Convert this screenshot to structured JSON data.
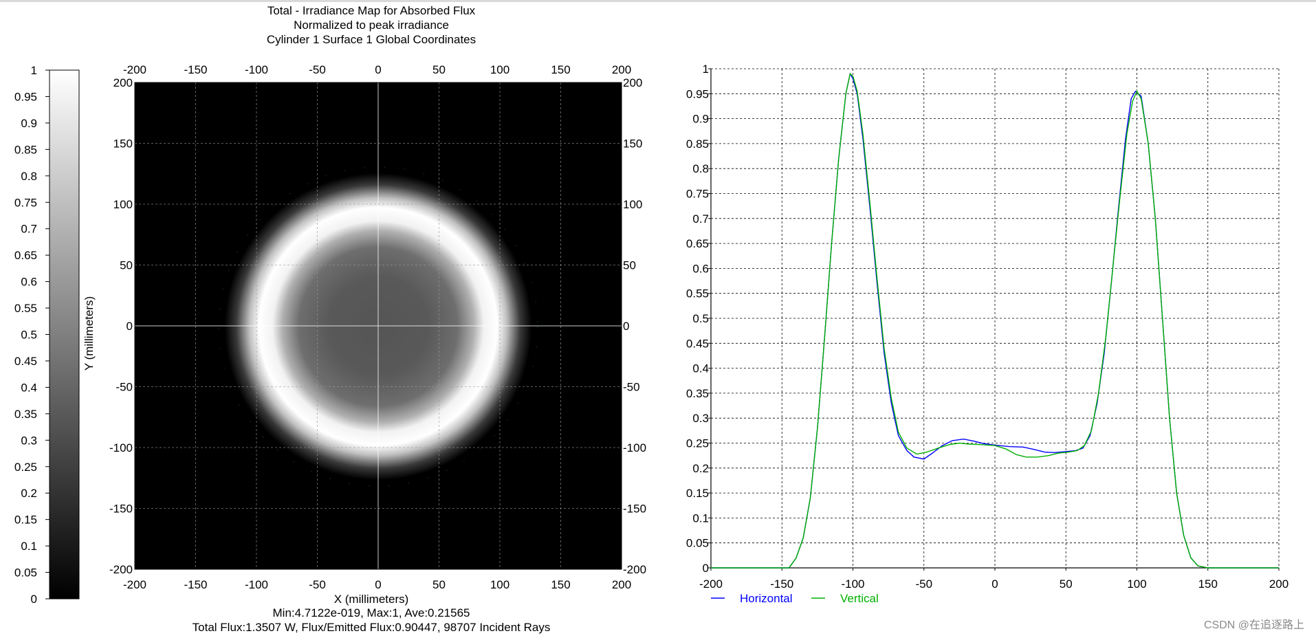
{
  "chart_data": [
    {
      "type": "colorbar",
      "label": "",
      "ylim": [
        0,
        1
      ],
      "ticks": [
        "0",
        "0.05",
        "0.1",
        "0.15",
        "0.2",
        "0.25",
        "0.3",
        "0.35",
        "0.4",
        "0.45",
        "0.5",
        "0.55",
        "0.6",
        "0.65",
        "0.7",
        "0.75",
        "0.8",
        "0.85",
        "0.9",
        "0.95",
        "1"
      ]
    },
    {
      "type": "heatmap",
      "title": [
        "Total - Irradiance Map for Absorbed Flux",
        "Normalized to peak irradiance",
        "Cylinder 1 Surface 1    Global Coordinates"
      ],
      "xlabel": "X (millimeters)",
      "ylabel": "Y (millimeters)",
      "xlim": [
        -200,
        200
      ],
      "ylim": [
        -200,
        200
      ],
      "xticks": [
        "-200",
        "-150",
        "-100",
        "-50",
        "0",
        "50",
        "100",
        "150",
        "200"
      ],
      "yticks": [
        "200",
        "150",
        "100",
        "50",
        "0",
        "-50",
        "-100",
        "-150",
        "-200"
      ],
      "grid": true,
      "description_values": {
        "ring_peak_radius_mm": 103,
        "ring_peak_value": 1.0,
        "center_value": 0.25,
        "outside_value": 0.0
      },
      "stats": [
        "Min:4.7122e-019, Max:1, Ave:0.21565",
        "Total Flux:1.3507 W, Flux/Emitted Flux:0.90447, 98707 Incident Rays"
      ]
    },
    {
      "type": "line",
      "xlim": [
        -200,
        200
      ],
      "ylim": [
        0,
        1
      ],
      "xticks": [
        "-200",
        "-150",
        "-100",
        "-50",
        "0",
        "50",
        "100",
        "150",
        "200"
      ],
      "yticks": [
        "0",
        "0.05",
        "0.1",
        "0.15",
        "0.2",
        "0.25",
        "0.3",
        "0.35",
        "0.4",
        "0.45",
        "0.5",
        "0.55",
        "0.6",
        "0.65",
        "0.7",
        "0.75",
        "0.8",
        "0.85",
        "0.9",
        "0.95",
        "1"
      ],
      "grid": true,
      "legend_position": "bottom-left",
      "series": [
        {
          "name": "Horizontal",
          "color": "#0000ff",
          "points": [
            [
              -200,
              0
            ],
            [
              -150,
              0
            ],
            [
              -145,
              0
            ],
            [
              -140,
              0.02
            ],
            [
              -135,
              0.06
            ],
            [
              -130,
              0.14
            ],
            [
              -125,
              0.28
            ],
            [
              -120,
              0.46
            ],
            [
              -115,
              0.65
            ],
            [
              -110,
              0.82
            ],
            [
              -105,
              0.95
            ],
            [
              -102,
              0.99
            ],
            [
              -100,
              0.98
            ],
            [
              -97,
              0.95
            ],
            [
              -93,
              0.86
            ],
            [
              -88,
              0.72
            ],
            [
              -83,
              0.57
            ],
            [
              -78,
              0.43
            ],
            [
              -73,
              0.33
            ],
            [
              -68,
              0.265
            ],
            [
              -62,
              0.235
            ],
            [
              -57,
              0.222
            ],
            [
              -50,
              0.218
            ],
            [
              -44,
              0.23
            ],
            [
              -37,
              0.245
            ],
            [
              -30,
              0.255
            ],
            [
              -22,
              0.258
            ],
            [
              -15,
              0.254
            ],
            [
              -8,
              0.249
            ],
            [
              0,
              0.246
            ],
            [
              10,
              0.243
            ],
            [
              20,
              0.242
            ],
            [
              28,
              0.237
            ],
            [
              35,
              0.232
            ],
            [
              42,
              0.231
            ],
            [
              50,
              0.233
            ],
            [
              57,
              0.235
            ],
            [
              62,
              0.24
            ],
            [
              67,
              0.265
            ],
            [
              72,
              0.33
            ],
            [
              77,
              0.43
            ],
            [
              82,
              0.57
            ],
            [
              87,
              0.72
            ],
            [
              92,
              0.86
            ],
            [
              96,
              0.94
            ],
            [
              99,
              0.955
            ],
            [
              103,
              0.945
            ],
            [
              108,
              0.85
            ],
            [
              113,
              0.7
            ],
            [
              118,
              0.5
            ],
            [
              123,
              0.3
            ],
            [
              128,
              0.15
            ],
            [
              133,
              0.065
            ],
            [
              138,
              0.02
            ],
            [
              143,
              0.004
            ],
            [
              150,
              0
            ],
            [
              200,
              0
            ]
          ]
        },
        {
          "name": "Vertical",
          "color": "#00b000",
          "points": [
            [
              -200,
              0
            ],
            [
              -150,
              0
            ],
            [
              -145,
              0
            ],
            [
              -140,
              0.02
            ],
            [
              -135,
              0.06
            ],
            [
              -130,
              0.14
            ],
            [
              -125,
              0.28
            ],
            [
              -120,
              0.46
            ],
            [
              -115,
              0.65
            ],
            [
              -110,
              0.82
            ],
            [
              -105,
              0.95
            ],
            [
              -102,
              0.99
            ],
            [
              -100,
              0.985
            ],
            [
              -97,
              0.955
            ],
            [
              -93,
              0.87
            ],
            [
              -88,
              0.73
            ],
            [
              -83,
              0.58
            ],
            [
              -78,
              0.44
            ],
            [
              -73,
              0.34
            ],
            [
              -68,
              0.272
            ],
            [
              -62,
              0.24
            ],
            [
              -55,
              0.228
            ],
            [
              -48,
              0.232
            ],
            [
              -40,
              0.24
            ],
            [
              -32,
              0.247
            ],
            [
              -25,
              0.25
            ],
            [
              -18,
              0.248
            ],
            [
              -10,
              0.247
            ],
            [
              0,
              0.245
            ],
            [
              8,
              0.238
            ],
            [
              15,
              0.227
            ],
            [
              22,
              0.222
            ],
            [
              30,
              0.222
            ],
            [
              38,
              0.225
            ],
            [
              45,
              0.23
            ],
            [
              52,
              0.232
            ],
            [
              58,
              0.235
            ],
            [
              63,
              0.245
            ],
            [
              68,
              0.275
            ],
            [
              73,
              0.35
            ],
            [
              78,
              0.46
            ],
            [
              83,
              0.6
            ],
            [
              88,
              0.74
            ],
            [
              93,
              0.87
            ],
            [
              97,
              0.935
            ],
            [
              100,
              0.955
            ],
            [
              103,
              0.94
            ],
            [
              108,
              0.85
            ],
            [
              113,
              0.7
            ],
            [
              118,
              0.5
            ],
            [
              123,
              0.3
            ],
            [
              128,
              0.15
            ],
            [
              133,
              0.065
            ],
            [
              138,
              0.02
            ],
            [
              143,
              0.004
            ],
            [
              150,
              0
            ],
            [
              200,
              0
            ]
          ]
        }
      ]
    }
  ],
  "watermark": "CSDN @在追逐路上"
}
